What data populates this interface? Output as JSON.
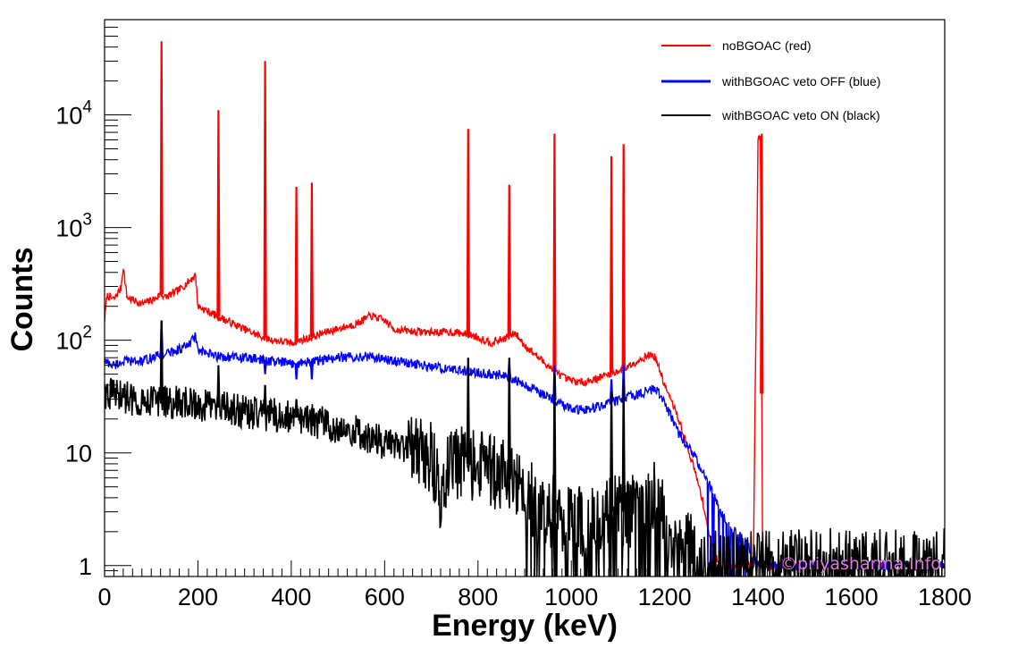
{
  "chart_data": {
    "type": "line",
    "title": "",
    "xlabel": "Energy (keV)",
    "ylabel": "Counts",
    "xlim": [
      0,
      1800
    ],
    "ylim": [
      0.8,
      70000
    ],
    "yscale": "log",
    "grid": false,
    "legend_position": "top-right",
    "x_ticks": [
      0,
      200,
      400,
      600,
      800,
      1000,
      1200,
      1400,
      1600,
      1800
    ],
    "x_tick_labels": [
      "0",
      "200",
      "400",
      "600",
      "800",
      "1000",
      "1200",
      "1400",
      "1600",
      "1800"
    ],
    "y_ticks": [
      1,
      10,
      100,
      1000,
      10000
    ],
    "y_tick_labels": [
      {
        "base": "1",
        "exp": ""
      },
      {
        "base": "10",
        "exp": ""
      },
      {
        "base": "10",
        "exp": "2"
      },
      {
        "base": "10",
        "exp": "3"
      },
      {
        "base": "10",
        "exp": "4"
      }
    ],
    "series": [
      {
        "name": "noBGOAC (red)",
        "color": "#ff0000",
        "continuum": [
          [
            0,
            150
          ],
          [
            5,
            250
          ],
          [
            20,
            230
          ],
          [
            35,
            290
          ],
          [
            40,
            450
          ],
          [
            48,
            240
          ],
          [
            80,
            210
          ],
          [
            110,
            235
          ],
          [
            120,
            260
          ],
          [
            130,
            240
          ],
          [
            160,
            280
          ],
          [
            180,
            330
          ],
          [
            195,
            380
          ],
          [
            200,
            200
          ],
          [
            240,
            165
          ],
          [
            300,
            125
          ],
          [
            330,
            110
          ],
          [
            360,
            100
          ],
          [
            400,
            95
          ],
          [
            440,
            105
          ],
          [
            480,
            120
          ],
          [
            540,
            140
          ],
          [
            570,
            165
          ],
          [
            600,
            150
          ],
          [
            620,
            125
          ],
          [
            660,
            120
          ],
          [
            700,
            118
          ],
          [
            750,
            118
          ],
          [
            790,
            110
          ],
          [
            830,
            95
          ],
          [
            860,
            105
          ],
          [
            880,
            115
          ],
          [
            900,
            90
          ],
          [
            930,
            70
          ],
          [
            960,
            55
          ],
          [
            990,
            45
          ],
          [
            1020,
            42
          ],
          [
            1050,
            45
          ],
          [
            1080,
            50
          ],
          [
            1110,
            55
          ],
          [
            1140,
            65
          ],
          [
            1170,
            75
          ],
          [
            1180,
            70
          ],
          [
            1200,
            40
          ],
          [
            1230,
            20
          ],
          [
            1260,
            8
          ],
          [
            1280,
            4
          ],
          [
            1300,
            1.5
          ],
          [
            1320,
            1
          ],
          [
            1390,
            1
          ],
          [
            1400,
            6000
          ],
          [
            1405,
            6500
          ],
          [
            1410,
            1
          ],
          [
            1800,
            1
          ]
        ],
        "peaks": [
          [
            122,
            45000
          ],
          [
            244,
            11000
          ],
          [
            344,
            30000
          ],
          [
            411,
            2300
          ],
          [
            444,
            2500
          ],
          [
            779,
            7500
          ],
          [
            867,
            2400
          ],
          [
            964,
            6800
          ],
          [
            1086,
            4300
          ],
          [
            1112,
            5500
          ],
          [
            1408,
            6800
          ]
        ]
      },
      {
        "name": "withBGOAC veto OFF (blue)",
        "color": "#0000ff",
        "continuum": [
          [
            0,
            65
          ],
          [
            20,
            60
          ],
          [
            40,
            65
          ],
          [
            80,
            65
          ],
          [
            110,
            72
          ],
          [
            150,
            80
          ],
          [
            180,
            90
          ],
          [
            195,
            110
          ],
          [
            200,
            80
          ],
          [
            240,
            72
          ],
          [
            300,
            70
          ],
          [
            350,
            66
          ],
          [
            400,
            62
          ],
          [
            450,
            65
          ],
          [
            500,
            70
          ],
          [
            560,
            72
          ],
          [
            600,
            68
          ],
          [
            650,
            63
          ],
          [
            700,
            58
          ],
          [
            750,
            55
          ],
          [
            790,
            52
          ],
          [
            830,
            50
          ],
          [
            860,
            48
          ],
          [
            880,
            45
          ],
          [
            900,
            40
          ],
          [
            930,
            35
          ],
          [
            960,
            30
          ],
          [
            990,
            26
          ],
          [
            1020,
            24
          ],
          [
            1050,
            25
          ],
          [
            1080,
            28
          ],
          [
            1110,
            30
          ],
          [
            1140,
            33
          ],
          [
            1170,
            36
          ],
          [
            1180,
            38
          ],
          [
            1200,
            28
          ],
          [
            1230,
            15
          ],
          [
            1260,
            10
          ],
          [
            1290,
            6
          ],
          [
            1320,
            3
          ],
          [
            1350,
            2
          ],
          [
            1380,
            1.5
          ],
          [
            1395,
            1
          ],
          [
            1800,
            1
          ]
        ],
        "peaks": [
          [
            122,
            150
          ],
          [
            244,
            70
          ],
          [
            344,
            50
          ],
          [
            411,
            45
          ],
          [
            444,
            45
          ],
          [
            779,
            60
          ],
          [
            867,
            65
          ],
          [
            964,
            60
          ],
          [
            1086,
            45
          ],
          [
            1112,
            60
          ],
          [
            1720,
            1
          ]
        ]
      },
      {
        "name": "withBGOAC veto ON (black)",
        "color": "#000000",
        "continuum": [
          [
            0,
            35
          ],
          [
            20,
            33
          ],
          [
            60,
            30
          ],
          [
            100,
            30
          ],
          [
            150,
            28
          ],
          [
            200,
            27
          ],
          [
            250,
            25
          ],
          [
            300,
            23
          ],
          [
            350,
            22
          ],
          [
            400,
            21
          ],
          [
            450,
            19
          ],
          [
            500,
            17
          ],
          [
            550,
            15
          ],
          [
            600,
            12
          ],
          [
            650,
            10
          ],
          [
            700,
            9
          ],
          [
            720,
            4
          ],
          [
            740,
            8
          ],
          [
            780,
            8
          ],
          [
            820,
            7
          ],
          [
            860,
            6
          ],
          [
            900,
            5
          ],
          [
            930,
            3
          ],
          [
            960,
            3
          ],
          [
            1000,
            2.5
          ],
          [
            1040,
            2.5
          ],
          [
            1080,
            3
          ],
          [
            1120,
            3
          ],
          [
            1160,
            3.5
          ],
          [
            1180,
            4
          ],
          [
            1200,
            2.5
          ],
          [
            1240,
            1.5
          ],
          [
            1280,
            1.2
          ],
          [
            1300,
            1
          ],
          [
            1800,
            1
          ]
        ],
        "peaks": [
          [
            122,
            150
          ],
          [
            244,
            60
          ],
          [
            344,
            40
          ],
          [
            411,
            30
          ],
          [
            444,
            25
          ],
          [
            779,
            70
          ],
          [
            867,
            70
          ],
          [
            964,
            50
          ],
          [
            1086,
            35
          ],
          [
            1112,
            45
          ]
        ]
      }
    ],
    "watermark": "©priyasharma.info"
  }
}
